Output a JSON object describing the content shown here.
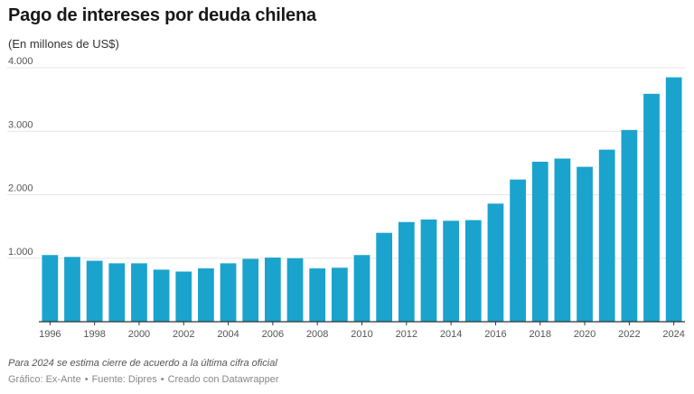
{
  "title": "Pago de intereses por deuda chilena",
  "subtitle": "(En millones de US$)",
  "footnote": "Para 2024 se estima cierre de acuerdo a la última cifra oficial",
  "credits": {
    "graphic": "Gráfico: Ex-Ante",
    "source": "Fuente: Dipres",
    "tool": "Creado con Datawrapper",
    "separator": "•"
  },
  "colors": {
    "bar": "#1aa3cd",
    "grid": "#e6e6e6",
    "axis": "#333333",
    "tick_text": "#555555"
  },
  "chart_data": {
    "type": "bar",
    "title": "Pago de intereses por deuda chilena",
    "subtitle": "(En millones de US$)",
    "xlabel": "",
    "ylabel": "",
    "ylim": [
      0,
      4000
    ],
    "grid": true,
    "yticks": [
      1000,
      2000,
      3000,
      4000
    ],
    "ytick_labels": [
      "1.000",
      "2.000",
      "3.000",
      "4.000"
    ],
    "categories": [
      "1996",
      "1997",
      "1998",
      "1999",
      "2000",
      "2001",
      "2002",
      "2003",
      "2004",
      "2005",
      "2006",
      "2007",
      "2008",
      "2009",
      "2010",
      "2011",
      "2012",
      "2013",
      "2014",
      "2015",
      "2016",
      "2017",
      "2018",
      "2019",
      "2020",
      "2021",
      "2022",
      "2023",
      "2024"
    ],
    "xtick_labels": [
      "1996",
      "1998",
      "2000",
      "2002",
      "2004",
      "2006",
      "2008",
      "2010",
      "2012",
      "2014",
      "2016",
      "2018",
      "2020",
      "2022",
      "2024"
    ],
    "values": [
      1050,
      1020,
      960,
      920,
      920,
      820,
      790,
      840,
      920,
      990,
      1010,
      1000,
      840,
      850,
      1050,
      1400,
      1570,
      1610,
      1590,
      1600,
      1860,
      2240,
      2520,
      2570,
      2440,
      2710,
      3020,
      3590,
      3850
    ]
  }
}
